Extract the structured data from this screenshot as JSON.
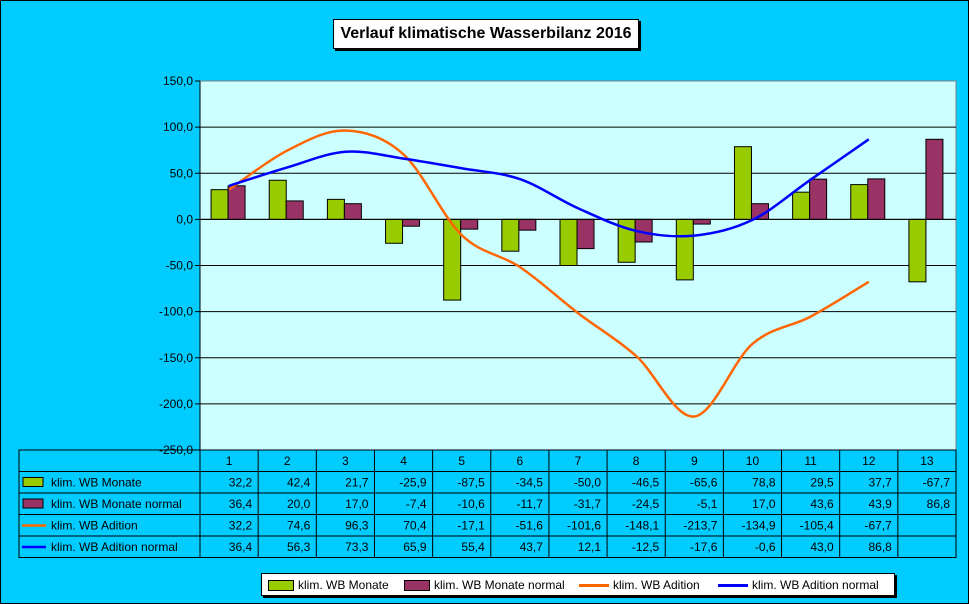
{
  "chart_data": {
    "type": "bar+line",
    "title": "Verlauf klimatische Wasserbilanz 2016",
    "categories": [
      "1",
      "2",
      "3",
      "4",
      "5",
      "6",
      "7",
      "8",
      "9",
      "10",
      "11",
      "12",
      "13"
    ],
    "y_ticks": [
      "150,0",
      "100,0",
      "50,0",
      "0,0",
      "-50,0",
      "-100,0",
      "-150,0",
      "-200,0",
      "-250,0"
    ],
    "ylim": [
      -250,
      150
    ],
    "grid": true,
    "legend_position": "bottom",
    "series": [
      {
        "name": "klim. WB Monate",
        "kind": "bar",
        "color": "#99cc00",
        "values": [
          32.2,
          42.4,
          21.7,
          -25.9,
          -87.5,
          -34.5,
          -50.0,
          -46.5,
          -65.6,
          78.8,
          29.5,
          37.7,
          -67.7
        ],
        "labels": [
          "32,2",
          "42,4",
          "21,7",
          "-25,9",
          "-87,5",
          "-34,5",
          "-50,0",
          "-46,5",
          "-65,6",
          "78,8",
          "29,5",
          "37,7",
          "-67,7"
        ]
      },
      {
        "name": "klim. WB Monate normal",
        "kind": "bar",
        "color": "#993366",
        "values": [
          36.4,
          20.0,
          17.0,
          -7.4,
          -10.6,
          -11.7,
          -31.7,
          -24.5,
          -5.1,
          17.0,
          43.6,
          43.9,
          86.8
        ],
        "labels": [
          "36,4",
          "20,0",
          "17,0",
          "-7,4",
          "-10,6",
          "-11,7",
          "-31,7",
          "-24,5",
          "-5,1",
          "17,0",
          "43,6",
          "43,9",
          "86,8"
        ]
      },
      {
        "name": "klim. WB Adition",
        "kind": "line",
        "color": "#ff6600",
        "values": [
          32.2,
          74.6,
          96.3,
          70.4,
          -17.1,
          -51.6,
          -101.6,
          -148.1,
          -213.7,
          -134.9,
          -105.4,
          -67.7,
          null
        ],
        "labels": [
          "32,2",
          "74,6",
          "96,3",
          "70,4",
          "-17,1",
          "-51,6",
          "-101,6",
          "-148,1",
          "-213,7",
          "-134,9",
          "-105,4",
          "-67,7",
          ""
        ]
      },
      {
        "name": "klim. WB Adition normal",
        "kind": "line",
        "color": "#0000ff",
        "values": [
          36.4,
          56.3,
          73.3,
          65.9,
          55.4,
          43.7,
          12.1,
          -12.5,
          -17.6,
          -0.6,
          43.0,
          86.8,
          null
        ],
        "labels": [
          "36,4",
          "56,3",
          "73,3",
          "65,9",
          "55,4",
          "43,7",
          "12,1",
          "-12,5",
          "-17,6",
          "-0,6",
          "43,0",
          "86,8",
          ""
        ]
      }
    ]
  }
}
